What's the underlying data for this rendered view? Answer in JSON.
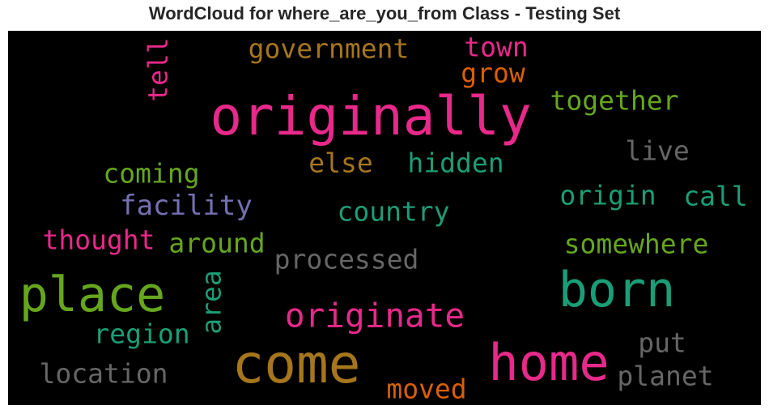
{
  "chart_data": {
    "type": "wordcloud",
    "title": "WordCloud for where_are_you_from Class - Testing Set",
    "background": "#000000",
    "words": [
      {
        "text": "originally",
        "color": "#e7298a"
      },
      {
        "text": "come",
        "color": "#a6761d"
      },
      {
        "text": "home",
        "color": "#e7298a"
      },
      {
        "text": "born",
        "color": "#1b9e77"
      },
      {
        "text": "place",
        "color": "#66a61e"
      },
      {
        "text": "originate",
        "color": "#e7298a"
      },
      {
        "text": "government",
        "color": "#a6761d"
      },
      {
        "text": "town",
        "color": "#e7298a"
      },
      {
        "text": "grow",
        "color": "#d95f02"
      },
      {
        "text": "tell",
        "color": "#e7298a"
      },
      {
        "text": "together",
        "color": "#66a61e"
      },
      {
        "text": "live",
        "color": "#666666"
      },
      {
        "text": "else",
        "color": "#a6761d"
      },
      {
        "text": "hidden",
        "color": "#1b9e77"
      },
      {
        "text": "coming",
        "color": "#66a61e"
      },
      {
        "text": "facility",
        "color": "#7570b3"
      },
      {
        "text": "country",
        "color": "#1b9e77"
      },
      {
        "text": "origin",
        "color": "#1b9e77"
      },
      {
        "text": "call",
        "color": "#1b9e77"
      },
      {
        "text": "thought",
        "color": "#e7298a"
      },
      {
        "text": "around",
        "color": "#66a61e"
      },
      {
        "text": "somewhere",
        "color": "#66a61e"
      },
      {
        "text": "processed",
        "color": "#666666"
      },
      {
        "text": "area",
        "color": "#1b9e77"
      },
      {
        "text": "region",
        "color": "#1b9e77"
      },
      {
        "text": "put",
        "color": "#666666"
      },
      {
        "text": "location",
        "color": "#666666"
      },
      {
        "text": "moved",
        "color": "#d95f02"
      },
      {
        "text": "planet",
        "color": "#666666"
      }
    ]
  }
}
